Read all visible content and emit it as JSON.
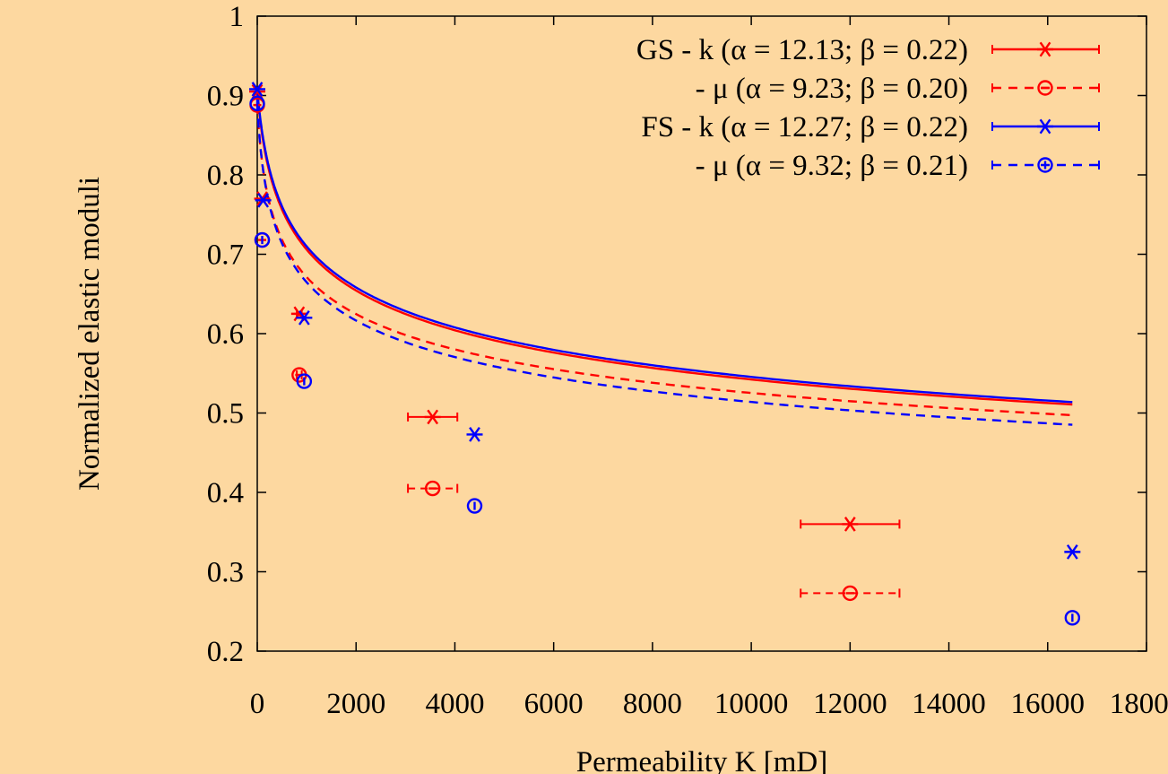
{
  "chart_data": {
    "type": "scatter",
    "title": "",
    "xlabel": "Permeability K [mD]",
    "ylabel": "Normalized elastic moduli",
    "xlim": [
      0,
      18000
    ],
    "ylim": [
      0.2,
      1.0
    ],
    "x_ticks": [
      0,
      2000,
      4000,
      6000,
      8000,
      10000,
      12000,
      14000,
      16000,
      18000
    ],
    "x_tick_labels": [
      "0",
      "2000",
      "4000",
      "6000",
      "8000",
      "10000",
      "12000",
      "14000",
      "16000",
      "18000"
    ],
    "y_ticks": [
      0.2,
      0.3,
      0.4,
      0.5,
      0.6,
      0.7,
      0.8,
      0.9,
      1.0
    ],
    "y_tick_labels": [
      "0.2",
      "0.3",
      "0.4",
      "0.5",
      "0.6",
      "0.7",
      "0.8",
      "0.9",
      "1"
    ],
    "legend_position": "top-right",
    "grid": false,
    "series": [
      {
        "name": "GS - k (α = 12.13; β = 0.22)",
        "color": "#ff0000",
        "marker": "asterisk",
        "line_style": "solid",
        "fit": {
          "alpha": 12.13,
          "beta": 0.22
        },
        "points": [
          {
            "x": 0,
            "y": 0.905,
            "xerr": 0
          },
          {
            "x": 100,
            "y": 0.77,
            "xerr": 0
          },
          {
            "x": 850,
            "y": 0.625,
            "xerr": 50
          },
          {
            "x": 3550,
            "y": 0.495,
            "xerr": 500
          },
          {
            "x": 12000,
            "y": 0.36,
            "xerr": 1000
          }
        ]
      },
      {
        "name": "- μ (α = 9.23; β = 0.20)",
        "color": "#ff0000",
        "marker": "circle-minus",
        "line_style": "dashed",
        "fit": {
          "alpha": 9.23,
          "beta": 0.2
        },
        "points": [
          {
            "x": 0,
            "y": 0.888,
            "xerr": 0
          },
          {
            "x": 100,
            "y": 0.718,
            "xerr": 0
          },
          {
            "x": 850,
            "y": 0.548,
            "xerr": 50
          },
          {
            "x": 3550,
            "y": 0.405,
            "xerr": 500
          },
          {
            "x": 12000,
            "y": 0.273,
            "xerr": 1000
          }
        ]
      },
      {
        "name": "FS - k (α = 12.27; β = 0.22)",
        "color": "#0000ff",
        "marker": "asterisk",
        "line_style": "solid",
        "fit": {
          "alpha": 12.27,
          "beta": 0.22
        },
        "points": [
          {
            "x": 0,
            "y": 0.908,
            "xerr": 0
          },
          {
            "x": 120,
            "y": 0.768,
            "xerr": 0
          },
          {
            "x": 950,
            "y": 0.62,
            "xerr": 0
          },
          {
            "x": 4400,
            "y": 0.473,
            "xerr": 0
          },
          {
            "x": 16500,
            "y": 0.325,
            "xerr": 0
          }
        ]
      },
      {
        "name": "- μ (α = 9.32; β = 0.21)",
        "color": "#0000ff",
        "marker": "circle-bar",
        "line_style": "dashed",
        "fit": {
          "alpha": 9.32,
          "beta": 0.21
        },
        "points": [
          {
            "x": 0,
            "y": 0.89,
            "xerr": 0
          },
          {
            "x": 100,
            "y": 0.718,
            "xerr": 0
          },
          {
            "x": 950,
            "y": 0.54,
            "xerr": 0
          },
          {
            "x": 4400,
            "y": 0.383,
            "xerr": 0
          },
          {
            "x": 16500,
            "y": 0.242,
            "xerr": 0
          }
        ]
      }
    ]
  }
}
